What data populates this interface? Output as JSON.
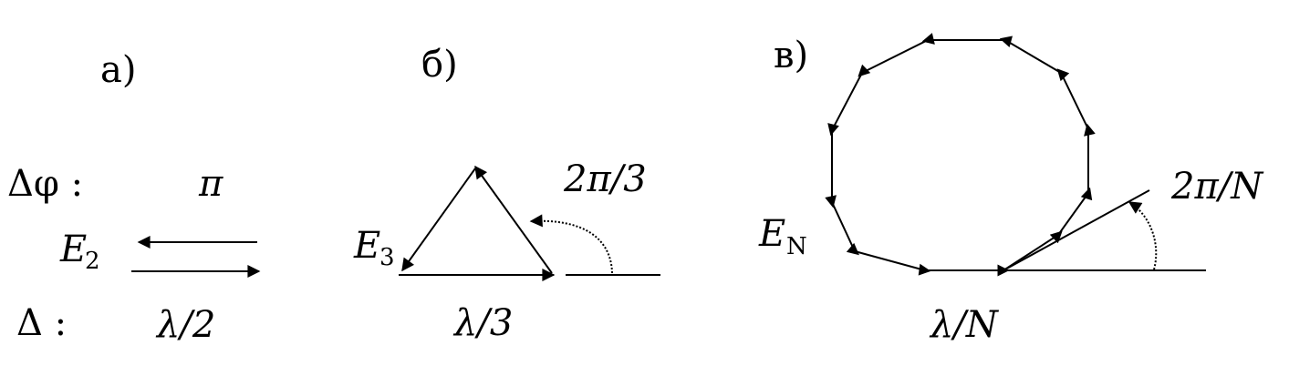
{
  "panels": {
    "a": {
      "label": "а)",
      "row_phase": "Δφ :",
      "row_path": "Δ :",
      "phase": "π",
      "field_sym": "E",
      "field_sub": "2",
      "path": "λ/2"
    },
    "b": {
      "label": "б)",
      "field_sym": "E",
      "field_sub": "3",
      "phase": "2π/3",
      "path": "λ/3"
    },
    "c": {
      "label": "в)",
      "field_sym": "E",
      "field_sub": "N",
      "phase": "2π/N",
      "path": "λ/N"
    }
  }
}
